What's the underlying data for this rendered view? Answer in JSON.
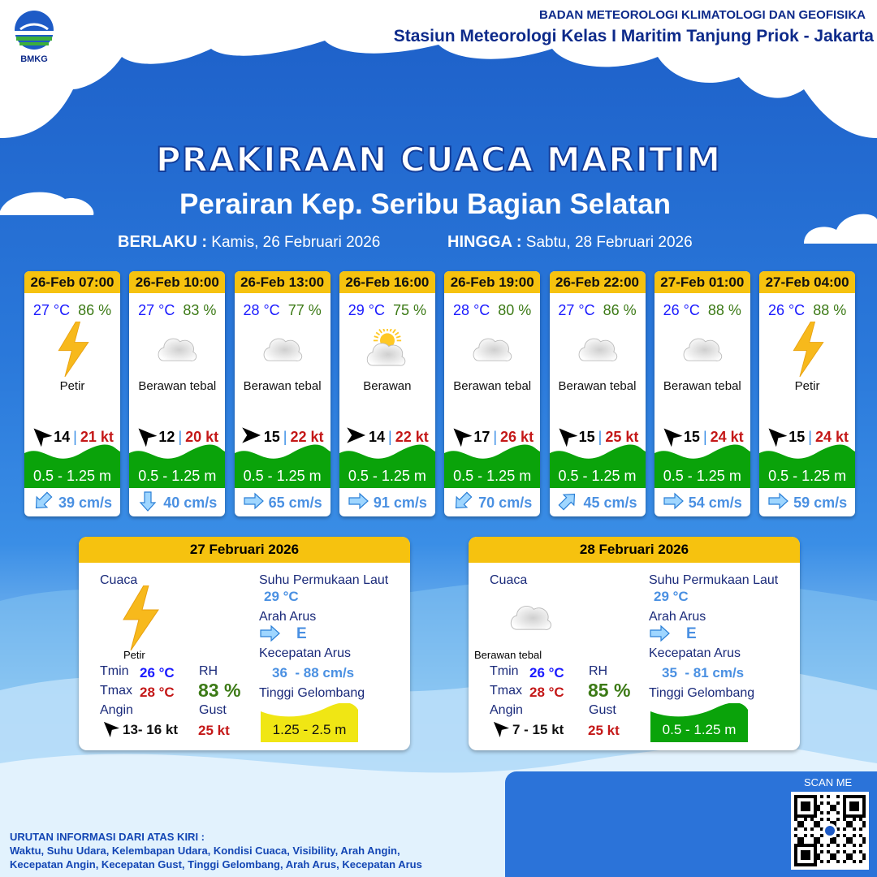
{
  "header": {
    "agency": "BADAN METEOROLOGI KLIMATOLOGI DAN GEOFISIKA",
    "station": "Stasiun Meteorologi Kelas I Maritim Tanjung Priok - Jakarta",
    "logo_text": "BMKG"
  },
  "title": "PRAKIRAAN CUACA MARITIM",
  "subtitle": "Perairan Kep. Seribu Bagian Selatan",
  "validity": {
    "from_label": "BERLAKU :",
    "from": "Kamis, 26 Februari 2026",
    "to_label": "HINGGA :",
    "to": "Sabtu, 28 Februari 2026"
  },
  "forecasts": [
    {
      "time": "26-Feb 07:00",
      "temp": "27 °C",
      "rh": "86 %",
      "icon": "lightning-icon",
      "weather": "Petir",
      "wind_dir": "northwest",
      "wind": "14",
      "gust": "21 kt",
      "wave": "0.5 - 1.25 m",
      "wave_color": "#0aa30a",
      "current_dir": "southwest",
      "current": "39 cm/s"
    },
    {
      "time": "26-Feb 10:00",
      "temp": "27 °C",
      "rh": "83 %",
      "icon": "cloud-icon",
      "weather": "Berawan tebal",
      "wind_dir": "northwest",
      "wind": "12",
      "gust": "20 kt",
      "wave": "0.5 - 1.25 m",
      "wave_color": "#0aa30a",
      "current_dir": "south",
      "current": "40 cm/s"
    },
    {
      "time": "26-Feb 13:00",
      "temp": "28 °C",
      "rh": "77 %",
      "icon": "cloud-icon",
      "weather": "Berawan tebal",
      "wind_dir": "east",
      "wind": "15",
      "gust": "22 kt",
      "wave": "0.5 - 1.25 m",
      "wave_color": "#0aa30a",
      "current_dir": "east",
      "current": "65 cm/s"
    },
    {
      "time": "26-Feb 16:00",
      "temp": "29 °C",
      "rh": "75 %",
      "icon": "partly-cloudy-icon",
      "weather": "Berawan",
      "wind_dir": "east",
      "wind": "14",
      "gust": "22 kt",
      "wave": "0.5 - 1.25 m",
      "wave_color": "#0aa30a",
      "current_dir": "east",
      "current": "91 cm/s"
    },
    {
      "time": "26-Feb 19:00",
      "temp": "28 °C",
      "rh": "80 %",
      "icon": "cloud-icon",
      "weather": "Berawan tebal",
      "wind_dir": "northwest",
      "wind": "17",
      "gust": "26 kt",
      "wave": "0.5 - 1.25 m",
      "wave_color": "#0aa30a",
      "current_dir": "southwest",
      "current": "70 cm/s"
    },
    {
      "time": "26-Feb 22:00",
      "temp": "27 °C",
      "rh": "86 %",
      "icon": "cloud-icon",
      "weather": "Berawan tebal",
      "wind_dir": "northwest",
      "wind": "15",
      "gust": "25 kt",
      "wave": "0.5 - 1.25 m",
      "wave_color": "#0aa30a",
      "current_dir": "northeast",
      "current": "45 cm/s"
    },
    {
      "time": "27-Feb 01:00",
      "temp": "26 °C",
      "rh": "88 %",
      "icon": "cloud-icon",
      "weather": "Berawan tebal",
      "wind_dir": "northwest",
      "wind": "15",
      "gust": "24 kt",
      "wave": "0.5 - 1.25 m",
      "wave_color": "#0aa30a",
      "current_dir": "east",
      "current": "54 cm/s"
    },
    {
      "time": "27-Feb 04:00",
      "temp": "26 °C",
      "rh": "88 %",
      "icon": "lightning-icon",
      "weather": "Petir",
      "wind_dir": "northwest",
      "wind": "15",
      "gust": "24 kt",
      "wave": "0.5 - 1.25 m",
      "wave_color": "#0aa30a",
      "current_dir": "east",
      "current": "59 cm/s"
    }
  ],
  "daily": [
    {
      "date": "27 Februari 2026",
      "cuaca_label": "Cuaca",
      "icon": "lightning-icon",
      "weather": "Petir",
      "tmin_label": "Tmin",
      "tmin": "26 °C",
      "tmax_label": "Tmax",
      "tmax": "28 °C",
      "rh_label": "RH",
      "rh": "83 %",
      "angin_label": "Angin",
      "angin": "13- 16 kt",
      "gust_label": "Gust",
      "gust": "25 kt",
      "sst_label": "Suhu Permukaan Laut",
      "sst": "29 °C",
      "arah_label": "Arah Arus",
      "arah": "E",
      "kec_label": "Kecepatan Arus",
      "kec": "36  - 88 cm/s",
      "gel_label": "Tinggi Gelombang",
      "gel": "1.25 - 2.5 m",
      "gel_color": "#f0e614",
      "gel_text_color": "#111"
    },
    {
      "date": "28 Februari 2026",
      "cuaca_label": "Cuaca",
      "icon": "cloud-icon",
      "weather": "Berawan tebal",
      "tmin_label": "Tmin",
      "tmin": "26 °C",
      "tmax_label": "Tmax",
      "tmax": "28 °C",
      "rh_label": "RH",
      "rh": "85 %",
      "angin_label": "Angin",
      "angin": "7  - 15 kt",
      "gust_label": "Gust",
      "gust": "25 kt",
      "sst_label": "Suhu Permukaan Laut",
      "sst": "29 °C",
      "arah_label": "Arah Arus",
      "arah": "E",
      "kec_label": "Kecepatan Arus",
      "kec": "35  - 81 cm/s",
      "gel_label": "Tinggi Gelombang",
      "gel": "0.5 - 1.25 m",
      "gel_color": "#0aa30a",
      "gel_text_color": "#fff"
    }
  ],
  "scan_label": "SCAN ME",
  "footer": {
    "line1": "URUTAN INFORMASI DARI ATAS KIRI :",
    "line2": "Waktu, Suhu Udara, Kelembapan Udara, Kondisi Cuaca, Visibility, Arah Angin,",
    "line3": "Kecepatan Angin, Kecepatan Gust, Tinggi Gelombang, Arah Arus, Kecepatan Arus"
  }
}
